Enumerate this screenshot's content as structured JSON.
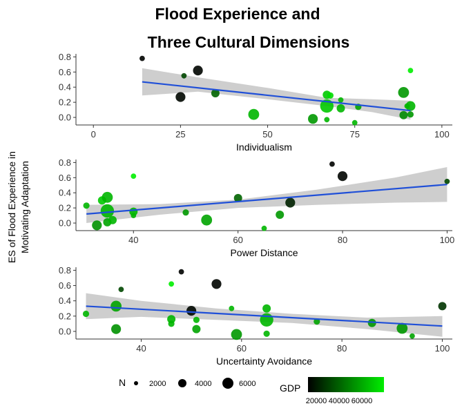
{
  "chart_data": {
    "type": "scatter",
    "title_lines": [
      "Flood Experience and",
      "Three Cultural Dimensions"
    ],
    "ylabel_lines": [
      "ES of Flood Experience in",
      "Motivating Adaptation"
    ],
    "legend": {
      "size_title": "N",
      "size_labels": [
        "2000",
        "4000",
        "6000"
      ],
      "color_title": "GDP",
      "color_labels": [
        "20000",
        "40000",
        "60000"
      ],
      "color_low": "#000000",
      "color_high": "#00ee00"
    },
    "fit_color": "#1f4fd8",
    "band_color": "#bdbdbd",
    "panels": [
      {
        "xlabel": "Individualism",
        "xlim": [
          -5,
          103
        ],
        "ylim": [
          -0.1,
          0.84
        ],
        "xticks": [
          0,
          25,
          50,
          75,
          100
        ],
        "yticks": [
          0.0,
          0.2,
          0.4,
          0.6,
          0.8
        ],
        "yticklabels": [
          "0.0",
          "0.2",
          "0.4",
          "0.6",
          "0.8"
        ],
        "fit": {
          "x": [
            14,
            91
          ],
          "y": [
            0.47,
            0.09
          ]
        },
        "band": {
          "x": [
            14,
            30,
            50,
            67,
            80,
            91
          ],
          "lo": [
            0.29,
            0.34,
            0.24,
            0.15,
            0.07,
            -0.03
          ],
          "hi": [
            0.65,
            0.53,
            0.39,
            0.26,
            0.24,
            0.22
          ]
        },
        "points": [
          {
            "x": 14,
            "y": 0.78,
            "n": 300,
            "gdp": 1500
          },
          {
            "x": 25,
            "y": 0.27,
            "n": 2600,
            "gdp": 3000
          },
          {
            "x": 26,
            "y": 0.55,
            "n": 300,
            "gdp": 20000
          },
          {
            "x": 30,
            "y": 0.62,
            "n": 2600,
            "gdp": 2000
          },
          {
            "x": 35,
            "y": 0.32,
            "n": 1500,
            "gdp": 28000
          },
          {
            "x": 46,
            "y": 0.04,
            "n": 3500,
            "gdp": 50000
          },
          {
            "x": 63,
            "y": -0.02,
            "n": 2600,
            "gdp": 42000
          },
          {
            "x": 67,
            "y": 0.3,
            "n": 1500,
            "gdp": 55000
          },
          {
            "x": 67,
            "y": 0.15,
            "n": 6000,
            "gdp": 55000
          },
          {
            "x": 67,
            "y": -0.03,
            "n": 300,
            "gdp": 50000
          },
          {
            "x": 68,
            "y": 0.29,
            "n": 600,
            "gdp": 60000
          },
          {
            "x": 71,
            "y": 0.23,
            "n": 300,
            "gdp": 50000
          },
          {
            "x": 71,
            "y": 0.12,
            "n": 1500,
            "gdp": 50000
          },
          {
            "x": 75,
            "y": -0.07,
            "n": 300,
            "gdp": 50000
          },
          {
            "x": 76,
            "y": 0.14,
            "n": 600,
            "gdp": 45000
          },
          {
            "x": 89,
            "y": 0.33,
            "n": 3500,
            "gdp": 42000
          },
          {
            "x": 89,
            "y": 0.03,
            "n": 1500,
            "gdp": 38000
          },
          {
            "x": 90,
            "y": 0.15,
            "n": 300,
            "gdp": 50000
          },
          {
            "x": 91,
            "y": 0.62,
            "n": 300,
            "gdp": 65000
          },
          {
            "x": 91,
            "y": 0.15,
            "n": 2600,
            "gdp": 50000
          },
          {
            "x": 91,
            "y": 0.04,
            "n": 600,
            "gdp": 42000
          }
        ]
      },
      {
        "xlabel": "Power Distance",
        "xlim": [
          29,
          101
        ],
        "ylim": [
          -0.1,
          0.84
        ],
        "xticks": [
          40,
          60,
          80,
          100
        ],
        "yticks": [
          0.0,
          0.2,
          0.4,
          0.6,
          0.8
        ],
        "yticklabels": [
          "0.0",
          "0.2",
          "0.4",
          "0.6",
          "0.8"
        ],
        "fit": {
          "x": [
            31,
            100
          ],
          "y": [
            0.12,
            0.51
          ]
        },
        "band": {
          "x": [
            31,
            45,
            60,
            75,
            90,
            100
          ],
          "lo": [
            0.0,
            0.11,
            0.2,
            0.24,
            0.27,
            0.28
          ],
          "hi": [
            0.24,
            0.25,
            0.31,
            0.44,
            0.6,
            0.74
          ]
        },
        "points": [
          {
            "x": 31,
            "y": 0.23,
            "n": 600,
            "gdp": 50000
          },
          {
            "x": 33,
            "y": -0.03,
            "n": 2600,
            "gdp": 40000
          },
          {
            "x": 34,
            "y": 0.3,
            "n": 1500,
            "gdp": 55000
          },
          {
            "x": 35,
            "y": 0.34,
            "n": 3500,
            "gdp": 50000
          },
          {
            "x": 35,
            "y": 0.16,
            "n": 6000,
            "gdp": 50000
          },
          {
            "x": 35,
            "y": 0.01,
            "n": 1500,
            "gdp": 45000
          },
          {
            "x": 36,
            "y": 0.04,
            "n": 1500,
            "gdp": 50000
          },
          {
            "x": 40,
            "y": 0.62,
            "n": 300,
            "gdp": 65000
          },
          {
            "x": 40,
            "y": 0.15,
            "n": 1500,
            "gdp": 50000
          },
          {
            "x": 40,
            "y": 0.1,
            "n": 300,
            "gdp": 50000
          },
          {
            "x": 50,
            "y": 0.14,
            "n": 600,
            "gdp": 42000
          },
          {
            "x": 54,
            "y": 0.04,
            "n": 3500,
            "gdp": 45000
          },
          {
            "x": 60,
            "y": 0.33,
            "n": 1500,
            "gdp": 28000
          },
          {
            "x": 65,
            "y": -0.07,
            "n": 300,
            "gdp": 50000
          },
          {
            "x": 68,
            "y": 0.11,
            "n": 1500,
            "gdp": 42000
          },
          {
            "x": 70,
            "y": 0.27,
            "n": 2600,
            "gdp": 10000
          },
          {
            "x": 78,
            "y": 0.78,
            "n": 300,
            "gdp": 1500
          },
          {
            "x": 80,
            "y": 0.62,
            "n": 2600,
            "gdp": 2000
          },
          {
            "x": 100,
            "y": 0.55,
            "n": 300,
            "gdp": 20000
          }
        ]
      },
      {
        "xlabel": "Uncertainty Avoidance",
        "xlim": [
          27,
          102
        ],
        "ylim": [
          -0.1,
          0.84
        ],
        "xticks": [
          40,
          60,
          80,
          100
        ],
        "yticks": [
          0.0,
          0.2,
          0.4,
          0.6,
          0.8
        ],
        "yticklabels": [
          "0.0",
          "0.2",
          "0.4",
          "0.6",
          "0.8"
        ],
        "fit": {
          "x": [
            29,
            100
          ],
          "y": [
            0.33,
            0.07
          ]
        },
        "band": {
          "x": [
            29,
            40,
            55,
            70,
            85,
            100
          ],
          "lo": [
            0.16,
            0.19,
            0.15,
            0.11,
            0.03,
            -0.07
          ],
          "hi": [
            0.5,
            0.4,
            0.3,
            0.23,
            0.18,
            0.2
          ]
        },
        "points": [
          {
            "x": 29,
            "y": 0.23,
            "n": 600,
            "gdp": 50000
          },
          {
            "x": 35,
            "y": 0.33,
            "n": 3500,
            "gdp": 45000
          },
          {
            "x": 35,
            "y": 0.03,
            "n": 2600,
            "gdp": 40000
          },
          {
            "x": 36,
            "y": 0.55,
            "n": 300,
            "gdp": 20000
          },
          {
            "x": 46,
            "y": 0.62,
            "n": 300,
            "gdp": 65000
          },
          {
            "x": 46,
            "y": 0.16,
            "n": 1500,
            "gdp": 50000
          },
          {
            "x": 46,
            "y": 0.1,
            "n": 600,
            "gdp": 50000
          },
          {
            "x": 48,
            "y": 0.78,
            "n": 300,
            "gdp": 1500
          },
          {
            "x": 50,
            "y": 0.27,
            "n": 2600,
            "gdp": 3000
          },
          {
            "x": 51,
            "y": 0.15,
            "n": 600,
            "gdp": 50000
          },
          {
            "x": 51,
            "y": 0.03,
            "n": 1500,
            "gdp": 45000
          },
          {
            "x": 55,
            "y": 0.62,
            "n": 2600,
            "gdp": 2000
          },
          {
            "x": 58,
            "y": 0.3,
            "n": 300,
            "gdp": 50000
          },
          {
            "x": 59,
            "y": -0.04,
            "n": 3500,
            "gdp": 42000
          },
          {
            "x": 65,
            "y": 0.3,
            "n": 1500,
            "gdp": 50000
          },
          {
            "x": 65,
            "y": 0.15,
            "n": 6000,
            "gdp": 50000
          },
          {
            "x": 65,
            "y": -0.03,
            "n": 600,
            "gdp": 50000
          },
          {
            "x": 75,
            "y": 0.13,
            "n": 600,
            "gdp": 45000
          },
          {
            "x": 86,
            "y": 0.11,
            "n": 1500,
            "gdp": 42000
          },
          {
            "x": 92,
            "y": 0.04,
            "n": 3500,
            "gdp": 42000
          },
          {
            "x": 94,
            "y": -0.06,
            "n": 300,
            "gdp": 45000
          },
          {
            "x": 100,
            "y": 0.33,
            "n": 1500,
            "gdp": 15000
          }
        ]
      }
    ]
  }
}
